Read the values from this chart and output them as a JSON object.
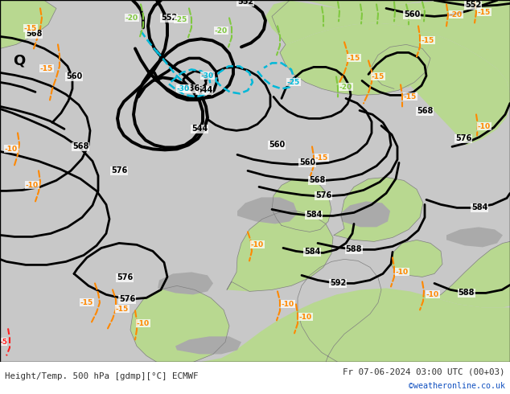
{
  "title_left": "Height/Temp. 500 hPa [gdmp][°C] ECMWF",
  "title_right": "Fr 07-06-2024 03:00 UTC (00+03)",
  "credit": "©weatheronline.co.uk",
  "bg_gray": "#c8c8c8",
  "bg_green": "#b8d890",
  "bg_white": "#ffffff",
  "figsize": [
    6.34,
    4.9
  ],
  "dpi": 100
}
